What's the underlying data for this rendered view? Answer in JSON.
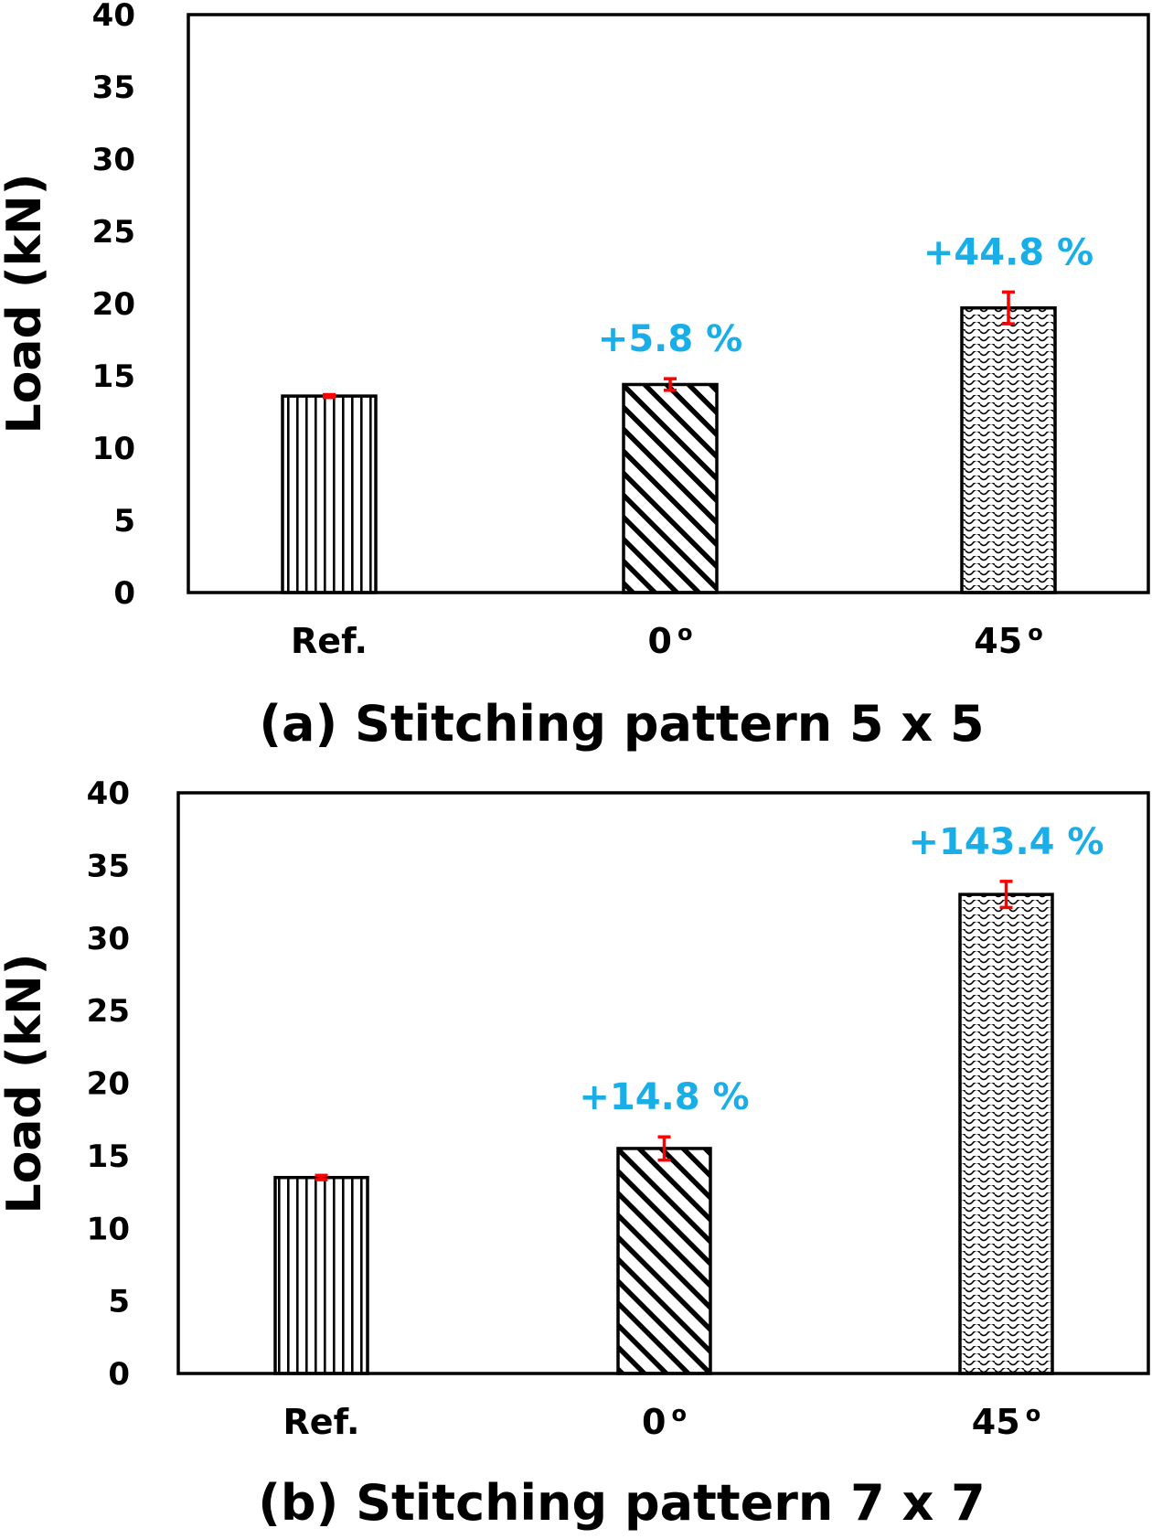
{
  "colors": {
    "annotation": "#1aaee8",
    "error_bar": "#ff0000",
    "axis": "#000000"
  },
  "chart_data": [
    {
      "type": "bar",
      "title": "(a) Stitching pattern 5 x 5",
      "xlabel": "",
      "ylabel": "Load (kN)",
      "ylim": [
        0,
        40
      ],
      "yticks": [
        0,
        5,
        10,
        15,
        20,
        25,
        30,
        35,
        40
      ],
      "grid": false,
      "legend": "none",
      "categories": [
        "Ref.",
        "0 °",
        "45 °"
      ],
      "category_main": [
        "Ref.",
        "0",
        "45"
      ],
      "category_sup": [
        "",
        "o",
        "o"
      ],
      "values": [
        13.6,
        14.4,
        19.7
      ],
      "errors": [
        0.1,
        0.4,
        1.1
      ],
      "patterns": [
        "vertical-lines",
        "diagonal-lines",
        "wavy-lines"
      ],
      "annotations": [
        "",
        "+5.8 %",
        "+44.8 %"
      ]
    },
    {
      "type": "bar",
      "title": "(b) Stitching pattern 7 x 7",
      "xlabel": "",
      "ylabel": "Load (kN)",
      "ylim": [
        0,
        40
      ],
      "yticks": [
        0,
        5,
        10,
        15,
        20,
        25,
        30,
        35,
        40
      ],
      "grid": false,
      "legend": "none",
      "categories": [
        "Ref.",
        "0 °",
        "45 °"
      ],
      "category_main": [
        "Ref.",
        "0",
        "45"
      ],
      "category_sup": [
        "",
        "o",
        "o"
      ],
      "values": [
        13.5,
        15.5,
        33.0
      ],
      "errors": [
        0.15,
        0.8,
        0.9
      ],
      "patterns": [
        "vertical-lines",
        "diagonal-lines",
        "wavy-lines"
      ],
      "annotations": [
        "",
        "+14.8 %",
        "+143.4 %"
      ]
    }
  ]
}
